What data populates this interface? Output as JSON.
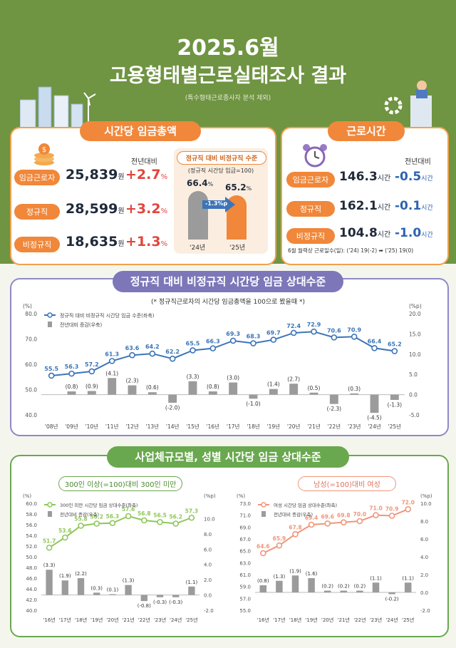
{
  "header": {
    "title_line1": "2025.6월",
    "title_line2": "고용형태별근로실태조사 결과",
    "note": "(특수형태근로종사자 분석 제외)"
  },
  "wage_panel": {
    "title": "시간당 임금총액",
    "change_header": "전년대비",
    "rows": [
      {
        "label": "임금근로자",
        "value": "25,839",
        "unit": "원",
        "change": "+2.7",
        "pct": "%"
      },
      {
        "label": "정규직",
        "value": "28,599",
        "unit": "원",
        "change": "+3.2",
        "pct": "%"
      },
      {
        "label": "비정규직",
        "value": "18,635",
        "unit": "원",
        "change": "+1.3",
        "pct": "%"
      }
    ],
    "mini": {
      "title": "정규직 대비 비정규직 수준",
      "subtitle": "(정규직 시간당 임금=100)",
      "bar1_value": "66.4",
      "bar2_value": "65.2",
      "pct": "%",
      "arrow_label": "-1.3%p",
      "bar1_label": "'24년",
      "bar2_label": "'25년"
    }
  },
  "hours_panel": {
    "title": "근로시간",
    "change_header": "전년대비",
    "rows": [
      {
        "label": "임금근로자",
        "value": "146.3",
        "unit": "시간",
        "change": "-0.5",
        "cunit": "시간"
      },
      {
        "label": "정규직",
        "value": "162.1",
        "unit": "시간",
        "change": "-0.1",
        "cunit": "시간"
      },
      {
        "label": "비정규직",
        "value": "104.8",
        "unit": "시간",
        "change": "-1.0",
        "cunit": "시간"
      }
    ],
    "footnote": "6월 월력상 근로일수(일): ('24) 19(-2) ➡ ('25) 19(0)"
  },
  "chart_data": [
    {
      "type": "line",
      "title": "정규직 대비 비정규직 시간당 임금 상대수준",
      "subtitle": "(* 정규직근로자의 시간당 임금총액을 100으로 봤을때 *)",
      "left_unit": "(%)",
      "right_unit": "(%p)",
      "categories": [
        "'08년",
        "'09년",
        "'10년",
        "'11년",
        "'12년",
        "'13년",
        "'14년",
        "'15년",
        "'16년",
        "'17년",
        "'18년",
        "'19년",
        "'20년",
        "'21년",
        "'22년",
        "'23년",
        "'24년",
        "'25년"
      ],
      "series": [
        {
          "name": "정규직 대비 비정규직 시간당 임금 수준(좌축)",
          "type": "line",
          "axis": "left",
          "values": [
            55.5,
            56.3,
            57.2,
            61.3,
            63.6,
            64.2,
            62.2,
            65.5,
            66.3,
            69.3,
            68.3,
            69.7,
            72.4,
            72.9,
            70.6,
            70.9,
            66.4,
            65.2
          ],
          "labels": [
            "55.5",
            "56.3",
            "57.2",
            "61.3",
            "63.6",
            "64.2",
            "62.2",
            "65.5",
            "66.3",
            "69.3",
            "68.3",
            "69.7",
            "72.4",
            "72.9",
            "70.6",
            "70.9",
            "66.4",
            "65.2"
          ]
        },
        {
          "name": "전년대비 증감(우축)",
          "type": "bar",
          "axis": "right",
          "values": [
            null,
            0.8,
            0.9,
            4.1,
            2.3,
            0.6,
            -2.0,
            3.3,
            0.8,
            3.0,
            -1.0,
            1.4,
            2.7,
            0.5,
            -2.3,
            0.3,
            -4.5,
            -1.3
          ],
          "labels": [
            "",
            "(0.8)",
            "(0.9)",
            "(4.1)",
            "(2.3)",
            "(0.6)",
            "(-2.0)",
            "(3.3)",
            "(0.8)",
            "(3.0)",
            "(-1.0)",
            "(1.4)",
            "(2.7)",
            "(0.5)",
            "(-2.3)",
            "(0.3)",
            "(-4.5)",
            "(-1.3)"
          ]
        }
      ],
      "y_left": {
        "range": [
          40,
          80
        ],
        "ticks": [
          "40.0",
          "50.0",
          "60.0",
          "70.0",
          "80.0"
        ]
      },
      "y_right": {
        "range": [
          -5,
          20
        ],
        "ticks": [
          "-5.0",
          "0.0",
          "5.0",
          "10.0",
          "15.0",
          "20.0"
        ]
      },
      "colors": {
        "line": "#3c74b8",
        "bar": "#9b9b9b"
      },
      "legend": "top-left"
    },
    {
      "type": "line",
      "title": "300인 이상(=100)대비 300인 미만",
      "left_unit": "(%)",
      "right_unit": "(%p)",
      "categories": [
        "'16년",
        "'17년",
        "'18년",
        "'19년",
        "'20년",
        "'21년",
        "'22년",
        "'23년",
        "'24년",
        "'25년"
      ],
      "series": [
        {
          "name": "300인 미만 시간당 임금 상대수준(좌축)",
          "type": "line",
          "axis": "left",
          "values": [
            51.7,
            53.6,
            55.8,
            56.2,
            56.3,
            57.6,
            56.8,
            56.5,
            56.2,
            57.3
          ],
          "labels": [
            "51.7",
            "53.6",
            "55.8",
            "56.2",
            "56.3",
            "57.6",
            "56.8",
            "56.5",
            "56.2",
            "57.3"
          ]
        },
        {
          "name": "전년대비 증감(우축)",
          "type": "bar",
          "axis": "right",
          "values": [
            3.3,
            1.9,
            2.2,
            0.3,
            0.1,
            1.3,
            -0.8,
            -0.3,
            -0.3,
            1.1
          ],
          "labels": [
            "(3.3)",
            "(1.9)",
            "(2.2)",
            "(0.3)",
            "(0.1)",
            "(1.3)",
            "(-0.8)",
            "(-0.3)",
            "(-0.3)",
            "(1.1)"
          ]
        }
      ],
      "y_left": {
        "range": [
          40,
          60
        ],
        "ticks": [
          "40.0",
          "42.0",
          "44.0",
          "46.0",
          "48.0",
          "50.0",
          "52.0",
          "54.0",
          "56.0",
          "58.0",
          "60.0"
        ]
      },
      "y_right": {
        "range": [
          -2,
          12
        ],
        "ticks": [
          "-2.0",
          "0.0",
          "2.0",
          "4.0",
          "6.0",
          "8.0",
          "10.0"
        ]
      },
      "colors": {
        "line": "#8fc75a",
        "bar": "#9b9b9b"
      },
      "legend": "top-left"
    },
    {
      "type": "line",
      "title": "남성(=100)대비 여성",
      "left_unit": "(%)",
      "right_unit": "(%p)",
      "categories": [
        "'16년",
        "'17년",
        "'18년",
        "'19년",
        "'20년",
        "'21년",
        "'22년",
        "'23년",
        "'24년",
        "'25년"
      ],
      "series": [
        {
          "name": "여성 시간당 임금 상대수준(좌축)",
          "type": "line",
          "axis": "left",
          "values": [
            64.6,
            65.9,
            67.8,
            69.4,
            69.6,
            69.8,
            70.0,
            71.0,
            70.9,
            72.0
          ],
          "labels": [
            "64.6",
            "65.9",
            "67.8",
            "69.4",
            "69.6",
            "69.8",
            "70.0",
            "71.0",
            "70.9",
            "72.0"
          ]
        },
        {
          "name": "전년대비 증감(우축)",
          "type": "bar",
          "axis": "right",
          "values": [
            0.8,
            1.3,
            1.9,
            1.6,
            0.2,
            0.2,
            0.2,
            1.1,
            -0.2,
            1.1
          ],
          "labels": [
            "(0.8)",
            "(1.3)",
            "(1.9)",
            "(1.6)",
            "(0.2)",
            "(0.2)",
            "(0.2)",
            "(1.1)",
            "(-0.2)",
            "(1.1)"
          ]
        }
      ],
      "y_left": {
        "range": [
          55,
          73
        ],
        "ticks": [
          "55.0",
          "57.0",
          "59.0",
          "61.0",
          "63.0",
          "65.0",
          "67.0",
          "69.0",
          "71.0",
          "73.0"
        ]
      },
      "y_right": {
        "range": [
          -2,
          10
        ],
        "ticks": [
          "-2.0",
          "0.0",
          "2.0",
          "4.0",
          "6.0",
          "8.0",
          "10.0"
        ]
      },
      "colors": {
        "line": "#f0967a",
        "bar": "#9b9b9b"
      },
      "legend": "top-left"
    }
  ],
  "bottom_section": {
    "title": "사업체규모별, 성별 시간당 임금 상대수준"
  },
  "colors": {
    "green_bg": "#6f9442",
    "orange": "#f0873a",
    "purple": "#7d77b9",
    "green_accent": "#6aa84f",
    "red": "#e2453c",
    "blue": "#2d63b0"
  }
}
